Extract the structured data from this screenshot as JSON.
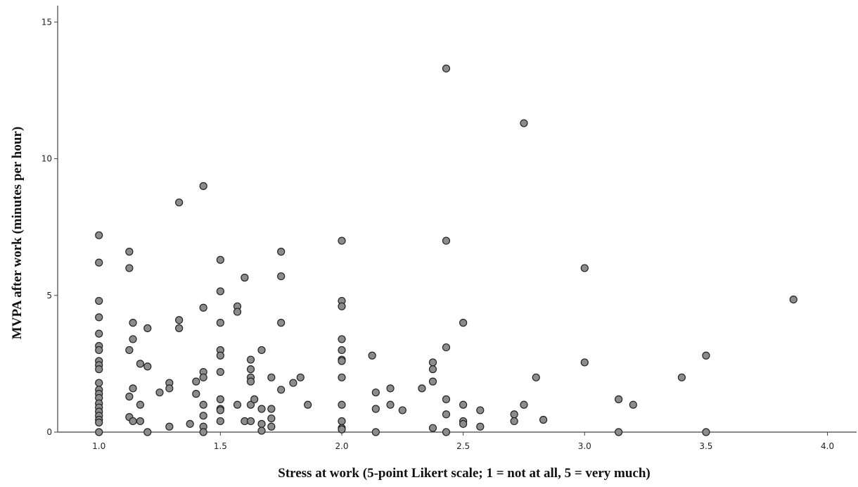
{
  "chart_data": {
    "type": "scatter",
    "xlabel": "Stress at work (5-point Likert scale; 1 = not at all, 5 = very much)",
    "ylabel": "MVPA after work (minutes per hour)",
    "xlim": [
      0.83,
      4.12
    ],
    "ylim": [
      0,
      15.6
    ],
    "x_ticks": [
      "1.0",
      "1.5",
      "2.0",
      "2.5",
      "3.0",
      "3.5",
      "4.0"
    ],
    "y_ticks": [
      "0",
      "5",
      "10",
      "15"
    ],
    "grid": false,
    "marker_color": "#8c8c8c",
    "marker_edge": "#222222",
    "points": [
      [
        1.0,
        7.2
      ],
      [
        1.0,
        6.2
      ],
      [
        1.0,
        4.8
      ],
      [
        1.0,
        4.2
      ],
      [
        1.0,
        3.6
      ],
      [
        1.0,
        3.15
      ],
      [
        1.0,
        3.0
      ],
      [
        1.0,
        2.6
      ],
      [
        1.0,
        2.45
      ],
      [
        1.0,
        2.3
      ],
      [
        1.0,
        1.8
      ],
      [
        1.0,
        1.55
      ],
      [
        1.0,
        1.4
      ],
      [
        1.0,
        1.25
      ],
      [
        1.0,
        1.05
      ],
      [
        1.0,
        0.9
      ],
      [
        1.0,
        0.75
      ],
      [
        1.0,
        0.6
      ],
      [
        1.0,
        0.45
      ],
      [
        1.0,
        0.35
      ],
      [
        1.0,
        0.0
      ],
      [
        1.125,
        6.6
      ],
      [
        1.125,
        6.0
      ],
      [
        1.125,
        3.0
      ],
      [
        1.125,
        1.3
      ],
      [
        1.125,
        0.55
      ],
      [
        1.14,
        4.0
      ],
      [
        1.14,
        3.4
      ],
      [
        1.14,
        1.6
      ],
      [
        1.14,
        0.4
      ],
      [
        1.17,
        2.5
      ],
      [
        1.17,
        1.0
      ],
      [
        1.17,
        0.4
      ],
      [
        1.2,
        3.8
      ],
      [
        1.2,
        2.4
      ],
      [
        1.2,
        0.0
      ],
      [
        1.25,
        1.45
      ],
      [
        1.29,
        1.8
      ],
      [
        1.29,
        1.6
      ],
      [
        1.29,
        0.2
      ],
      [
        1.33,
        8.4
      ],
      [
        1.33,
        4.1
      ],
      [
        1.33,
        3.8
      ],
      [
        1.375,
        0.3
      ],
      [
        1.4,
        1.4
      ],
      [
        1.4,
        1.85
      ],
      [
        1.43,
        9.0
      ],
      [
        1.43,
        4.55
      ],
      [
        1.43,
        2.2
      ],
      [
        1.43,
        2.0
      ],
      [
        1.43,
        1.0
      ],
      [
        1.43,
        0.6
      ],
      [
        1.43,
        0.2
      ],
      [
        1.43,
        0.0
      ],
      [
        1.5,
        6.3
      ],
      [
        1.5,
        5.15
      ],
      [
        1.5,
        4.0
      ],
      [
        1.5,
        3.0
      ],
      [
        1.5,
        2.8
      ],
      [
        1.5,
        2.2
      ],
      [
        1.5,
        1.2
      ],
      [
        1.5,
        0.85
      ],
      [
        1.5,
        0.8
      ],
      [
        1.5,
        0.4
      ],
      [
        1.57,
        4.6
      ],
      [
        1.57,
        4.4
      ],
      [
        1.57,
        1.0
      ],
      [
        1.6,
        5.65
      ],
      [
        1.6,
        0.4
      ],
      [
        1.625,
        2.65
      ],
      [
        1.625,
        2.3
      ],
      [
        1.625,
        2.0
      ],
      [
        1.625,
        1.85
      ],
      [
        1.625,
        1.0
      ],
      [
        1.625,
        0.4
      ],
      [
        1.64,
        1.2
      ],
      [
        1.67,
        3.0
      ],
      [
        1.67,
        0.85
      ],
      [
        1.67,
        0.3
      ],
      [
        1.67,
        0.05
      ],
      [
        1.71,
        2.0
      ],
      [
        1.71,
        0.85
      ],
      [
        1.71,
        0.5
      ],
      [
        1.71,
        0.2
      ],
      [
        1.75,
        6.6
      ],
      [
        1.75,
        5.7
      ],
      [
        1.75,
        4.0
      ],
      [
        1.75,
        1.55
      ],
      [
        1.8,
        1.8
      ],
      [
        1.83,
        2.0
      ],
      [
        1.86,
        1.0
      ],
      [
        2.0,
        7.0
      ],
      [
        2.0,
        4.8
      ],
      [
        2.0,
        4.6
      ],
      [
        2.0,
        3.4
      ],
      [
        2.0,
        3.0
      ],
      [
        2.0,
        2.65
      ],
      [
        2.0,
        2.6
      ],
      [
        2.0,
        2.0
      ],
      [
        2.0,
        1.0
      ],
      [
        2.0,
        0.4
      ],
      [
        2.0,
        0.15
      ],
      [
        2.0,
        0.1
      ],
      [
        2.125,
        2.8
      ],
      [
        2.14,
        1.45
      ],
      [
        2.14,
        0.85
      ],
      [
        2.14,
        0.0
      ],
      [
        2.2,
        1.6
      ],
      [
        2.2,
        1.0
      ],
      [
        2.25,
        0.8
      ],
      [
        2.33,
        1.6
      ],
      [
        2.375,
        2.55
      ],
      [
        2.375,
        2.3
      ],
      [
        2.375,
        1.85
      ],
      [
        2.375,
        0.15
      ],
      [
        2.43,
        13.3
      ],
      [
        2.43,
        7.0
      ],
      [
        2.43,
        3.1
      ],
      [
        2.43,
        1.2
      ],
      [
        2.43,
        0.65
      ],
      [
        2.43,
        0.0
      ],
      [
        2.5,
        4.0
      ],
      [
        2.5,
        1.0
      ],
      [
        2.5,
        0.4
      ],
      [
        2.5,
        0.3
      ],
      [
        2.57,
        0.8
      ],
      [
        2.57,
        0.2
      ],
      [
        2.71,
        0.65
      ],
      [
        2.71,
        0.4
      ],
      [
        2.75,
        11.3
      ],
      [
        2.75,
        1.0
      ],
      [
        2.8,
        2.0
      ],
      [
        2.83,
        0.45
      ],
      [
        3.0,
        6.0
      ],
      [
        3.0,
        2.55
      ],
      [
        3.14,
        1.2
      ],
      [
        3.14,
        0.0
      ],
      [
        3.2,
        1.0
      ],
      [
        3.4,
        2.0
      ],
      [
        3.5,
        2.8
      ],
      [
        3.5,
        0.0
      ],
      [
        3.86,
        4.85
      ]
    ]
  }
}
